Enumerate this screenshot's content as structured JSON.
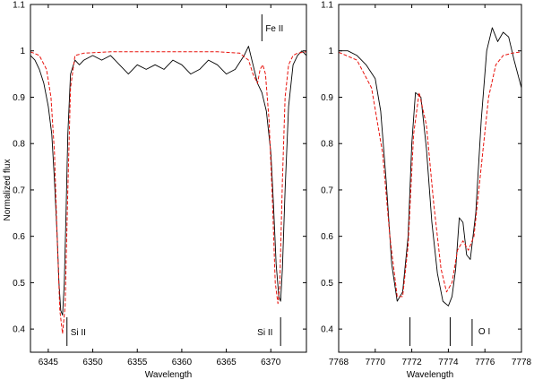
{
  "chart_data": [
    {
      "type": "line",
      "xlabel": "Wavelength",
      "ylabel": "Normalized flux",
      "xlim": [
        6343,
        6374
      ],
      "ylim": [
        0.35,
        1.1
      ],
      "xticks": [
        6345,
        6350,
        6355,
        6360,
        6365,
        6370
      ],
      "yticks": [
        0.4,
        0.5,
        0.6,
        0.7,
        0.8,
        0.9,
        1.0,
        1.1
      ],
      "ytick_labels": [
        "0.4",
        "0.5",
        "0.6",
        "0.7",
        "0.8",
        "0.9",
        "1",
        "1.1"
      ],
      "series": [
        {
          "color": "#000000",
          "style": "solid",
          "x": [
            6343.0,
            6343.5,
            6344.0,
            6344.5,
            6345.0,
            6345.4,
            6345.7,
            6346.0,
            6346.2,
            6346.4,
            6346.6,
            6346.8,
            6347.0,
            6347.2,
            6347.5,
            6348.0,
            6348.5,
            6349.0,
            6350.0,
            6351.0,
            6352.0,
            6353.0,
            6354.0,
            6355.0,
            6356.0,
            6357.0,
            6358.0,
            6359.0,
            6360.0,
            6361.0,
            6362.0,
            6363.0,
            6364.0,
            6365.0,
            6366.0,
            6367.0,
            6367.5,
            6368.0,
            6368.5,
            6369.0,
            6369.5,
            6370.0,
            6370.3,
            6370.6,
            6370.9,
            6371.1,
            6371.3,
            6371.6,
            6372.0,
            6372.5,
            6373.0,
            6373.5,
            6374.0
          ],
          "y": [
            0.99,
            0.98,
            0.96,
            0.93,
            0.88,
            0.82,
            0.72,
            0.6,
            0.5,
            0.44,
            0.43,
            0.5,
            0.65,
            0.82,
            0.95,
            0.98,
            0.97,
            0.98,
            0.99,
            0.98,
            0.99,
            0.97,
            0.95,
            0.97,
            0.96,
            0.97,
            0.96,
            0.98,
            0.97,
            0.95,
            0.96,
            0.98,
            0.97,
            0.95,
            0.96,
            0.99,
            1.01,
            0.97,
            0.93,
            0.91,
            0.87,
            0.78,
            0.67,
            0.54,
            0.47,
            0.46,
            0.53,
            0.7,
            0.88,
            0.97,
            0.99,
            1.0,
            0.99
          ]
        },
        {
          "color": "#e8120c",
          "style": "dashed",
          "x": [
            6343.0,
            6344.0,
            6344.8,
            6345.3,
            6345.7,
            6346.0,
            6346.3,
            6346.6,
            6346.9,
            6347.2,
            6347.5,
            6348.0,
            6349.0,
            6352.0,
            6356.0,
            6360.0,
            6364.0,
            6366.5,
            6367.5,
            6368.0,
            6368.5,
            6368.8,
            6369.1,
            6369.4,
            6369.8,
            6370.2,
            6370.5,
            6370.8,
            6371.0,
            6371.3,
            6371.6,
            6372.0,
            6372.5,
            6373.0,
            6374.0
          ],
          "y": [
            0.998,
            0.99,
            0.96,
            0.9,
            0.78,
            0.6,
            0.44,
            0.39,
            0.45,
            0.7,
            0.92,
            0.99,
            0.995,
            0.998,
            0.998,
            0.998,
            0.998,
            0.995,
            0.98,
            0.95,
            0.93,
            0.96,
            0.97,
            0.95,
            0.85,
            0.67,
            0.5,
            0.455,
            0.49,
            0.72,
            0.9,
            0.97,
            0.99,
            0.995,
            0.998
          ]
        }
      ],
      "annotations": [
        {
          "text": "Fe II",
          "x": 6369.0
        },
        {
          "text": "Si II",
          "x": 6347.1
        },
        {
          "text": "Si II",
          "x": 6371.1
        }
      ]
    },
    {
      "type": "line",
      "xlabel": "Wavelength",
      "ylabel": "",
      "xlim": [
        7768,
        7778
      ],
      "ylim": [
        0.35,
        1.1
      ],
      "xticks": [
        7768,
        7770,
        7772,
        7774,
        7776,
        7778
      ],
      "yticks": [
        0.4,
        0.5,
        0.6,
        0.7,
        0.8,
        0.9,
        1.0,
        1.1
      ],
      "ytick_labels": [
        "0.4",
        "0.5",
        "0.6",
        "0.7",
        "0.8",
        "0.9",
        "1",
        "1.1"
      ],
      "series": [
        {
          "color": "#000000",
          "style": "solid",
          "x": [
            7768.0,
            7768.5,
            7769.0,
            7769.5,
            7770.0,
            7770.3,
            7770.6,
            7770.9,
            7771.2,
            7771.5,
            7771.8,
            7772.0,
            7772.2,
            7772.5,
            7772.8,
            7773.1,
            7773.4,
            7773.7,
            7774.0,
            7774.2,
            7774.4,
            7774.6,
            7774.8,
            7775.0,
            7775.2,
            7775.5,
            7775.8,
            7776.1,
            7776.4,
            7776.7,
            7777.0,
            7777.3,
            7777.6,
            7778.0
          ],
          "y": [
            1.0,
            1.0,
            0.99,
            0.97,
            0.94,
            0.87,
            0.72,
            0.54,
            0.46,
            0.48,
            0.6,
            0.8,
            0.91,
            0.9,
            0.79,
            0.63,
            0.52,
            0.46,
            0.45,
            0.47,
            0.53,
            0.64,
            0.63,
            0.56,
            0.55,
            0.65,
            0.85,
            1.0,
            1.05,
            1.02,
            1.04,
            1.03,
            0.98,
            0.92
          ]
        },
        {
          "color": "#e8120c",
          "style": "dashed",
          "x": [
            7768.0,
            7769.0,
            7769.8,
            7770.4,
            7770.8,
            7771.2,
            7771.5,
            7771.8,
            7772.1,
            7772.4,
            7772.8,
            7773.2,
            7773.6,
            7773.9,
            7774.2,
            7774.5,
            7774.8,
            7775.1,
            7775.4,
            7775.8,
            7776.2,
            7776.6,
            7777.0,
            7777.5,
            7778.0
          ],
          "y": [
            0.997,
            0.98,
            0.92,
            0.78,
            0.6,
            0.47,
            0.47,
            0.58,
            0.82,
            0.91,
            0.84,
            0.67,
            0.53,
            0.48,
            0.5,
            0.57,
            0.59,
            0.57,
            0.6,
            0.75,
            0.9,
            0.97,
            0.99,
            0.995,
            0.998
          ]
        }
      ],
      "annotations": [
        {
          "text": "O I",
          "x": 7775.3
        }
      ],
      "unlabeled_lines": [
        7771.9,
        7774.1
      ]
    }
  ]
}
